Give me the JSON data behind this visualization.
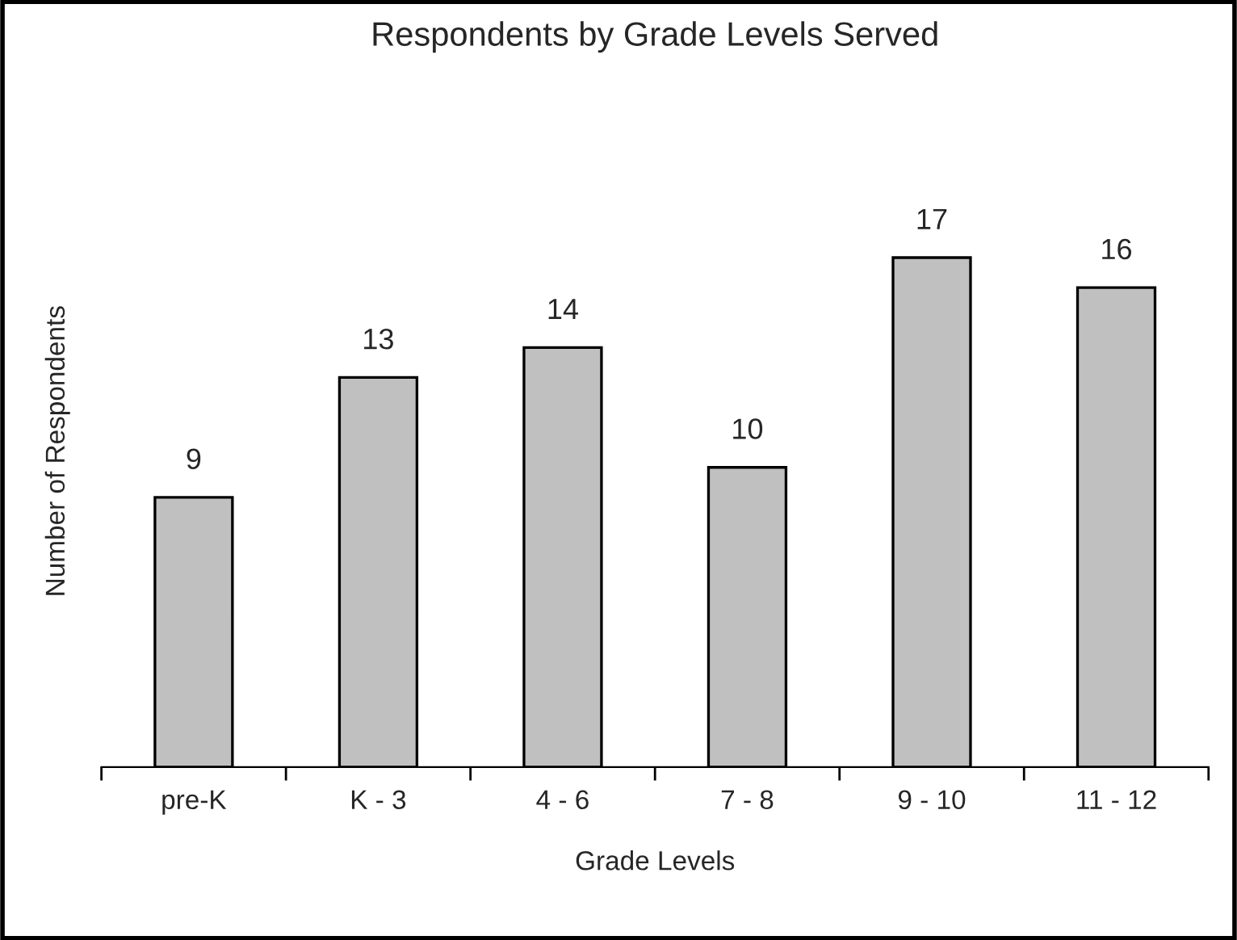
{
  "chart_data": {
    "type": "bar",
    "title": "Respondents by Grade Levels Served",
    "xlabel": "Grade Levels",
    "ylabel": "Number of Respondents",
    "categories": [
      "pre-K",
      "K - 3",
      "4 - 6",
      "7 - 8",
      "9 - 10",
      "11 - 12"
    ],
    "values": [
      9,
      13,
      14,
      10,
      17,
      16
    ],
    "color": "#c0c0c0",
    "data_labels": true,
    "grid": false,
    "legend": false,
    "tick_labels": "x"
  }
}
